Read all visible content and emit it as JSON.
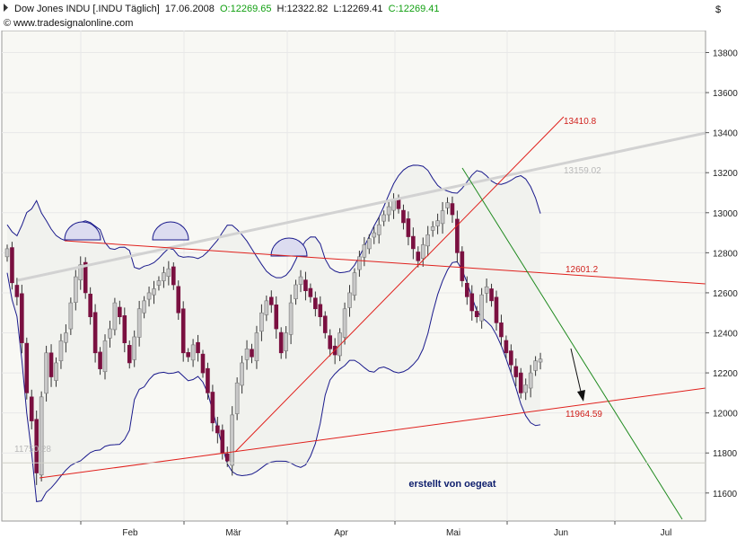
{
  "header": {
    "instrument": "Dow Jones INDU [.INDU Täglich]",
    "date": "17.06.2008",
    "open": "O:12269.65",
    "high": "H:12322.82",
    "low": "L:12269.41",
    "close": "C:12269.41",
    "source": "© www.tradesignalonline.com",
    "currency": "$"
  },
  "colors": {
    "up": "#c8c8c8",
    "down": "#7a1040",
    "wick": "#333333",
    "bollinger": "#1a1a8c",
    "band_fill": "#f1f2ee",
    "red_line": "#e0201c",
    "green_line": "#1f8a1f",
    "grey_line": "#d2d2d2",
    "grid": "#e8e8e8",
    "bg": "#f8f8f4"
  },
  "chart_data": {
    "type": "candlestick",
    "x_labels": [
      "Feb",
      "Mär",
      "Apr",
      "Mai",
      "Jun",
      "Jul"
    ],
    "y_ticks": [
      11600,
      11800,
      12000,
      12200,
      12400,
      12600,
      12800,
      13000,
      13200,
      13400,
      13600,
      13800
    ],
    "ylim": [
      11460,
      13910
    ],
    "annotations": [
      {
        "label": "13410.8",
        "value": 13410.8,
        "color": "#d0201c"
      },
      {
        "label": "13159.02",
        "value": 13159.02,
        "color": "#b8b8b8"
      },
      {
        "label": "12601.2",
        "value": 12601.2,
        "color": "#d0201c"
      },
      {
        "label": "11964.59",
        "value": 11964.59,
        "color": "#d0201c"
      },
      {
        "label": "11750.28",
        "value": 11750.28,
        "color": "#b8b8b8"
      }
    ],
    "watermark": "erstellt von oegeat",
    "closes": [
      12820,
      12650,
      12580,
      12350,
      12100,
      11960,
      11700,
      12080,
      12300,
      12180,
      12250,
      12360,
      12400,
      12550,
      12680,
      12740,
      12600,
      12480,
      12300,
      12220,
      12360,
      12420,
      12550,
      12480,
      12350,
      12250,
      12380,
      12520,
      12560,
      12600,
      12620,
      12660,
      12700,
      12720,
      12640,
      12500,
      12300,
      12280,
      12340,
      12300,
      12200,
      12100,
      11950,
      11900,
      11800,
      11760,
      11990,
      12150,
      12250,
      12320,
      12280,
      12400,
      12500,
      12560,
      12540,
      12420,
      12300,
      12400,
      12550,
      12640,
      12680,
      12610,
      12580,
      12520,
      12480,
      12400,
      12320,
      12290,
      12400,
      12520,
      12600,
      12700,
      12780,
      12840,
      12870,
      12900,
      12940,
      12990,
      13030,
      13060,
      13020,
      12950,
      12880,
      12820,
      12760,
      12840,
      12890,
      12930,
      12960,
      13010,
      13050,
      12990,
      12800,
      12660,
      12580,
      12510,
      12480,
      12590,
      12630,
      12560,
      12450,
      12380,
      12300,
      12240,
      12180,
      12100,
      12140,
      12200,
      12260,
      12269
    ]
  }
}
